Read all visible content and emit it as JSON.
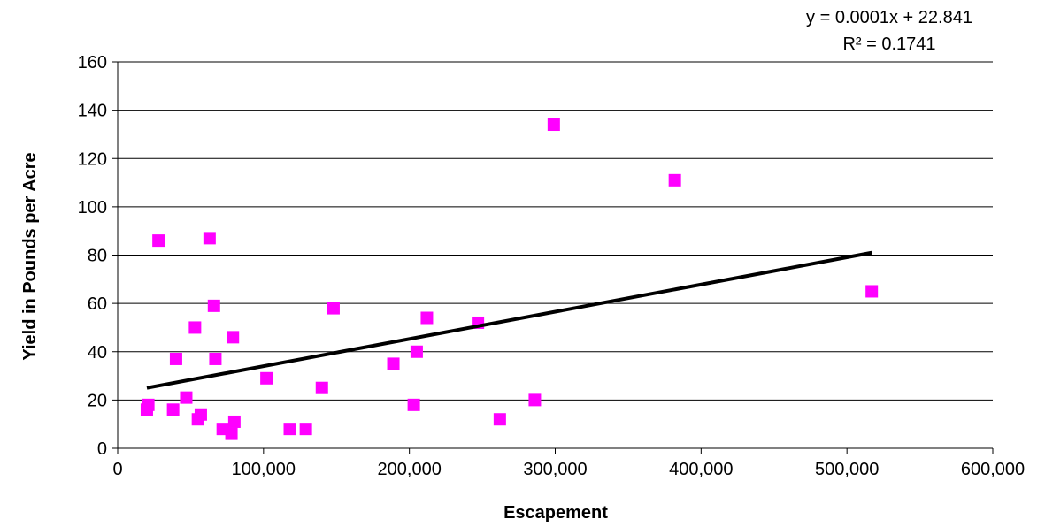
{
  "chart_data": {
    "type": "scatter",
    "xlabel": "Escapement",
    "ylabel": "Yield in Pounds per Acre",
    "xlim": [
      0,
      600000
    ],
    "ylim": [
      0,
      160
    ],
    "x_ticks": [
      0,
      100000,
      200000,
      300000,
      400000,
      500000,
      600000
    ],
    "x_tick_labels": [
      "0",
      "100,000",
      "200,000",
      "300,000",
      "400,000",
      "500,000",
      "600,000"
    ],
    "y_ticks": [
      0,
      20,
      40,
      60,
      80,
      100,
      120,
      140,
      160
    ],
    "y_tick_labels": [
      "0",
      "20",
      "40",
      "60",
      "80",
      "100",
      "120",
      "140",
      "160"
    ],
    "grid": "horizontal",
    "legend": "none",
    "colors": {
      "points": "#ff00ff",
      "trendline": "#000000",
      "grid": "#000000"
    },
    "series": [
      {
        "marker": "square",
        "points": [
          {
            "x": 20000,
            "y": 16
          },
          {
            "x": 21000,
            "y": 18
          },
          {
            "x": 28000,
            "y": 86
          },
          {
            "x": 38000,
            "y": 16
          },
          {
            "x": 40000,
            "y": 37
          },
          {
            "x": 47000,
            "y": 21
          },
          {
            "x": 53000,
            "y": 50
          },
          {
            "x": 55000,
            "y": 12
          },
          {
            "x": 57000,
            "y": 14
          },
          {
            "x": 63000,
            "y": 87
          },
          {
            "x": 66000,
            "y": 59
          },
          {
            "x": 67000,
            "y": 37
          },
          {
            "x": 72000,
            "y": 8
          },
          {
            "x": 78000,
            "y": 6
          },
          {
            "x": 79000,
            "y": 46
          },
          {
            "x": 80000,
            "y": 11
          },
          {
            "x": 102000,
            "y": 29
          },
          {
            "x": 118000,
            "y": 8
          },
          {
            "x": 129000,
            "y": 8
          },
          {
            "x": 140000,
            "y": 25
          },
          {
            "x": 148000,
            "y": 58
          },
          {
            "x": 189000,
            "y": 35
          },
          {
            "x": 203000,
            "y": 18
          },
          {
            "x": 205000,
            "y": 40
          },
          {
            "x": 212000,
            "y": 54
          },
          {
            "x": 247000,
            "y": 52
          },
          {
            "x": 262000,
            "y": 12
          },
          {
            "x": 286000,
            "y": 20
          },
          {
            "x": 299000,
            "y": 134
          },
          {
            "x": 382000,
            "y": 111
          },
          {
            "x": 517000,
            "y": 65
          }
        ]
      }
    ],
    "trendline": {
      "type": "linear",
      "x_start": 20000,
      "y_start": 25,
      "x_end": 517000,
      "y_end": 81
    },
    "annotations": {
      "equation": "y = 0.0001x + 22.841",
      "r_squared": "R² = 0.1741"
    }
  }
}
